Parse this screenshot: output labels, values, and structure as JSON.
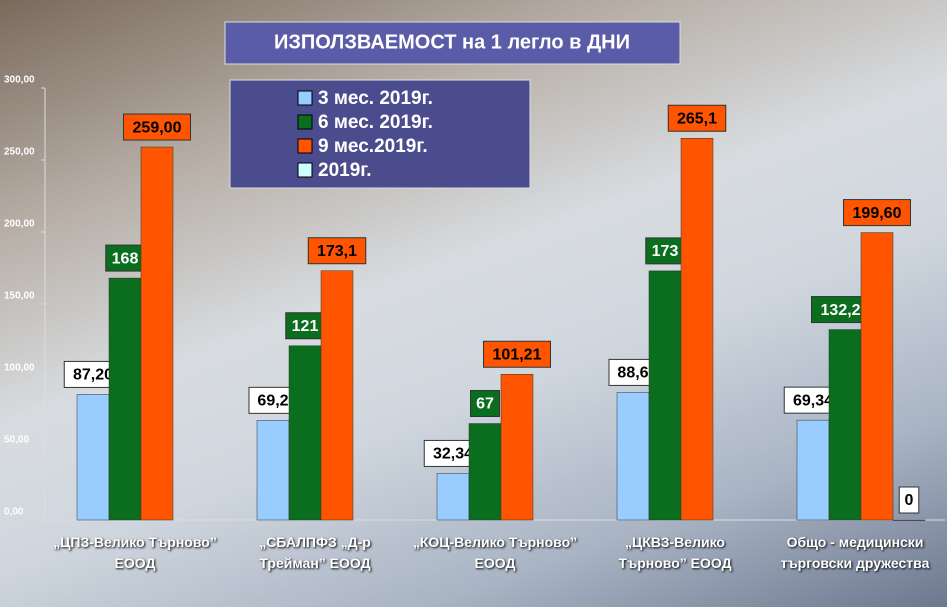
{
  "chart_data": {
    "type": "bar",
    "title": "ИЗПОЛЗВАЕМОСТ на 1 легло в ДНИ",
    "categories": [
      "„ЦПЗ-Велико Търново” ЕООД",
      "„СБАЛПФЗ „Д-р Трейман” ЕООД",
      "„КОЦ-Велико Търново” ЕООД",
      "„ЦКВЗ-Велико Търново” ЕООД",
      "Общо - медицински търговски дружества"
    ],
    "series": [
      {
        "name": "3 мес. 2019г.",
        "color": "#99ccff",
        "values": [
          87.2,
          69.2,
          32.34,
          88.6,
          69.34
        ],
        "value_labels": [
          "87,20",
          "69,2",
          "32,34",
          "88,6",
          "69,34"
        ]
      },
      {
        "name": "6 мес. 2019г.",
        "color": "#0a6e1e",
        "values": [
          168,
          121,
          67,
          173,
          132.25
        ],
        "value_labels": [
          "168",
          "121",
          "67",
          "173",
          "132,25"
        ]
      },
      {
        "name": "9 мес.2019г.",
        "color": "#ff5500",
        "values": [
          259,
          173.1,
          101.21,
          265.1,
          199.6
        ],
        "value_labels": [
          "259,00",
          "173,1",
          "101,21",
          "265,1",
          "199,60"
        ]
      },
      {
        "name": "2019г.",
        "color": "#ccffff",
        "values": [
          null,
          null,
          null,
          null,
          0
        ],
        "value_labels": [
          null,
          null,
          null,
          null,
          "0"
        ]
      }
    ],
    "ylim": [
      0,
      300
    ],
    "yticks": [
      {
        "value": 0,
        "label": "0,00"
      },
      {
        "value": 50,
        "label": "50,00"
      },
      {
        "value": 100,
        "label": "100,00"
      },
      {
        "value": 150,
        "label": "150,00"
      },
      {
        "value": 200,
        "label": "200,00"
      },
      {
        "value": 250,
        "label": "250,00"
      },
      {
        "value": 300,
        "label": "300,00"
      }
    ]
  }
}
